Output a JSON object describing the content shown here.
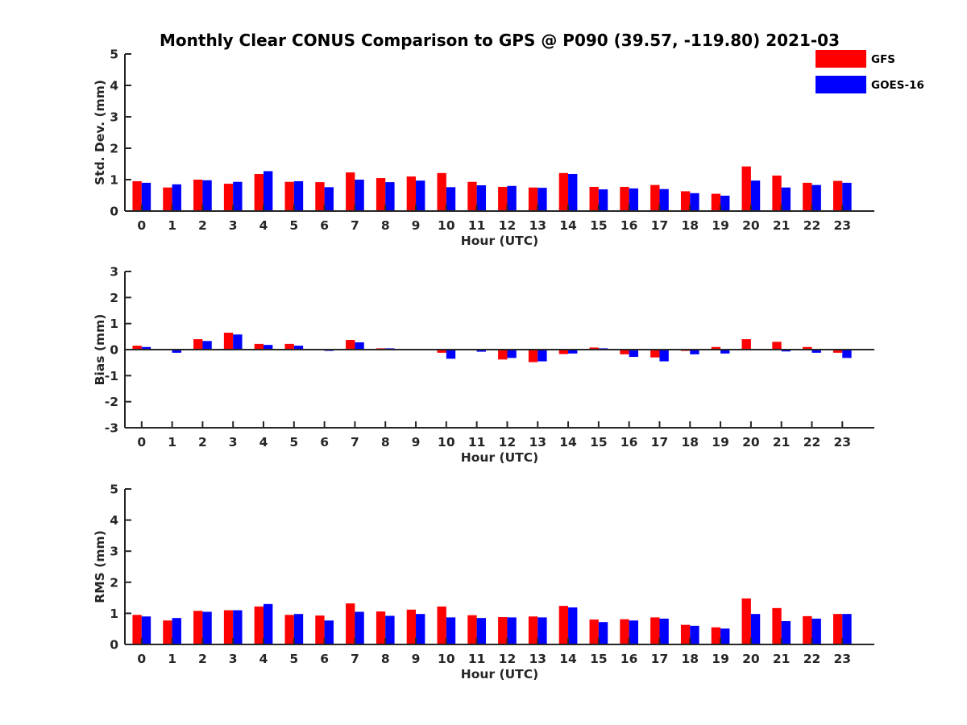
{
  "chart_data": {
    "title": "Monthly Clear CONUS Comparison to GPS @ P090 (39.57, -119.80) 2021-03",
    "legend": {
      "placement": "top-right",
      "entries": [
        {
          "name": "GFS",
          "color": "#ff0000"
        },
        {
          "name": "GOES-16",
          "color": "#0000ff"
        }
      ]
    },
    "colors": {
      "GFS": "#ff0000",
      "GOES-16": "#0000ff",
      "axis": "#262626"
    },
    "panels": [
      {
        "type": "bar",
        "xlabel": "Hour (UTC)",
        "ylabel": "Std. Dev. (mm)",
        "ylim": [
          0,
          5
        ],
        "yticks": [
          "0",
          "1",
          "2",
          "3",
          "4",
          "5"
        ],
        "categories": [
          "0",
          "1",
          "2",
          "3",
          "4",
          "5",
          "6",
          "7",
          "8",
          "9",
          "10",
          "11",
          "12",
          "13",
          "14",
          "15",
          "16",
          "17",
          "18",
          "19",
          "20",
          "21",
          "22",
          "23"
        ],
        "series": [
          {
            "name": "GFS",
            "values": [
              0.95,
              0.75,
              1.0,
              0.87,
              1.18,
              0.93,
              0.92,
              1.23,
              1.05,
              1.1,
              1.21,
              0.93,
              0.77,
              0.75,
              1.21,
              0.77,
              0.77,
              0.83,
              0.63,
              0.55,
              1.42,
              1.13,
              0.9,
              0.96
            ]
          },
          {
            "name": "GOES-16",
            "values": [
              0.9,
              0.85,
              0.98,
              0.93,
              1.27,
              0.95,
              0.76,
              1.0,
              0.92,
              0.97,
              0.76,
              0.82,
              0.8,
              0.74,
              1.18,
              0.69,
              0.72,
              0.7,
              0.57,
              0.49,
              0.97,
              0.75,
              0.83,
              0.9
            ]
          }
        ]
      },
      {
        "type": "bar",
        "xlabel": "Hour (UTC)",
        "ylabel": "Bias (mm)",
        "ylim": [
          -3,
          3
        ],
        "yticks": [
          "-3",
          "-2",
          "-1",
          "0",
          "1",
          "2",
          "3"
        ],
        "categories": [
          "0",
          "1",
          "2",
          "3",
          "4",
          "5",
          "6",
          "7",
          "8",
          "9",
          "10",
          "11",
          "12",
          "13",
          "14",
          "15",
          "16",
          "17",
          "18",
          "19",
          "20",
          "21",
          "22",
          "23"
        ],
        "series": [
          {
            "name": "GFS",
            "values": [
              0.15,
              0.03,
              0.4,
              0.65,
              0.22,
              0.22,
              0.03,
              0.37,
              0.05,
              0.0,
              -0.12,
              -0.03,
              -0.38,
              -0.48,
              -0.17,
              0.08,
              -0.18,
              -0.3,
              -0.05,
              0.1,
              0.4,
              0.3,
              0.1,
              -0.12
            ]
          },
          {
            "name": "GOES-16",
            "values": [
              0.1,
              -0.12,
              0.33,
              0.58,
              0.18,
              0.15,
              -0.05,
              0.28,
              0.05,
              0.0,
              -0.35,
              -0.08,
              -0.32,
              -0.45,
              -0.15,
              0.05,
              -0.28,
              -0.45,
              -0.18,
              -0.15,
              0.0,
              -0.07,
              -0.12,
              -0.32
            ]
          }
        ]
      },
      {
        "type": "bar",
        "xlabel": "Hour (UTC)",
        "ylabel": "RMS (mm)",
        "ylim": [
          0,
          5
        ],
        "yticks": [
          "0",
          "1",
          "2",
          "3",
          "4",
          "5"
        ],
        "categories": [
          "0",
          "1",
          "2",
          "3",
          "4",
          "5",
          "6",
          "7",
          "8",
          "9",
          "10",
          "11",
          "12",
          "13",
          "14",
          "15",
          "16",
          "17",
          "18",
          "19",
          "20",
          "21",
          "22",
          "23"
        ],
        "series": [
          {
            "name": "GFS",
            "values": [
              0.95,
              0.77,
              1.08,
              1.1,
              1.22,
              0.95,
              0.93,
              1.32,
              1.06,
              1.12,
              1.22,
              0.94,
              0.88,
              0.9,
              1.24,
              0.8,
              0.81,
              0.87,
              0.63,
              0.55,
              1.48,
              1.17,
              0.91,
              0.98
            ]
          },
          {
            "name": "GOES-16",
            "values": [
              0.9,
              0.85,
              1.05,
              1.1,
              1.3,
              0.98,
              0.77,
              1.05,
              0.92,
              0.98,
              0.87,
              0.85,
              0.87,
              0.87,
              1.19,
              0.72,
              0.77,
              0.83,
              0.6,
              0.51,
              0.98,
              0.75,
              0.83,
              0.98
            ]
          }
        ]
      }
    ]
  }
}
